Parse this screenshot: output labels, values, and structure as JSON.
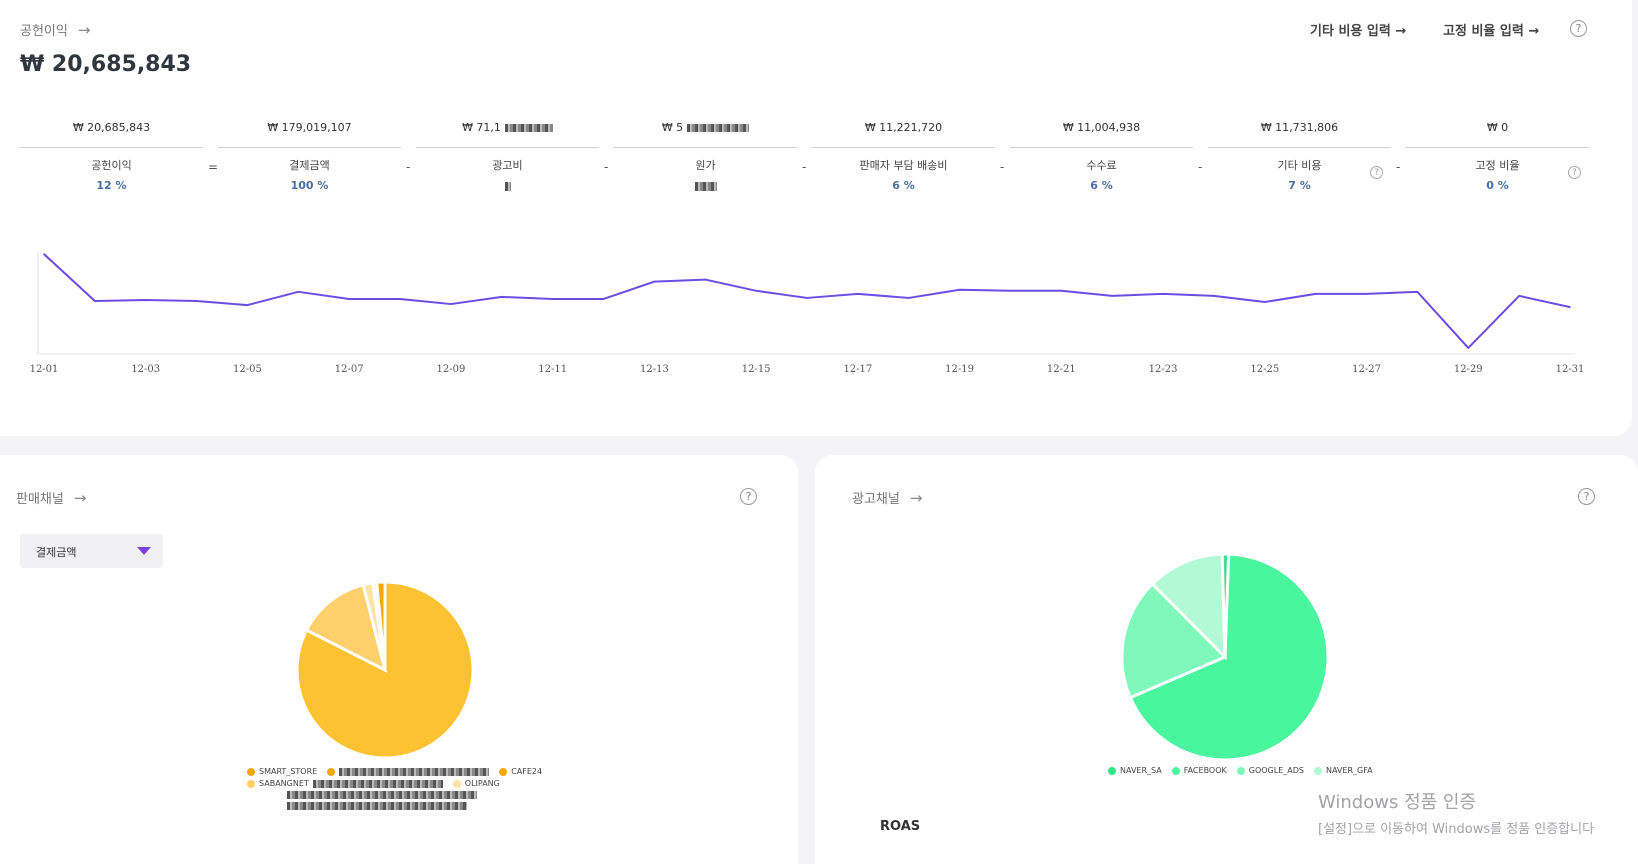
{
  "profit": {
    "title": "공헌이익",
    "value": "₩ 20,685,843",
    "links": [
      "기타 비용 입력 →",
      "고정 비율 입력 →"
    ],
    "metrics": [
      {
        "value": "₩ 20,685,843",
        "label": "공헌이익",
        "pct": "12 %",
        "op": "="
      },
      {
        "value": "₩ 179,019,107",
        "label": "결제금액",
        "pct": "100 %",
        "op": "-"
      },
      {
        "value": "₩ 71,1",
        "label": "광고비",
        "pct": "",
        "op": "-"
      },
      {
        "value": "₩ 5",
        "label": "원가",
        "pct": "",
        "op": "-"
      },
      {
        "value": "₩ 11,221,720",
        "label": "판매자 부담 배송비",
        "pct": "6 %",
        "op": "-"
      },
      {
        "value": "₩ 11,004,938",
        "label": "수수료",
        "pct": "6 %",
        "op": "-"
      },
      {
        "value": "₩ 11,731,806",
        "label": "기타 비용",
        "pct": "7 %",
        "op": "-"
      },
      {
        "value": "₩ 0",
        "label": "고정 비율",
        "pct": "0 %",
        "op": ""
      }
    ]
  },
  "chart_data": [
    {
      "type": "line",
      "x": [
        "12-01",
        "12-02",
        "12-03",
        "12-04",
        "12-05",
        "12-06",
        "12-07",
        "12-08",
        "12-09",
        "12-10",
        "12-11",
        "12-12",
        "12-13",
        "12-14",
        "12-15",
        "12-16",
        "12-17",
        "12-18",
        "12-19",
        "12-20",
        "12-21",
        "12-22",
        "12-23",
        "12-24",
        "12-25",
        "12-26",
        "12-27",
        "12-28",
        "12-29",
        "12-30",
        "12-31"
      ],
      "tick_labels": [
        "12-01",
        "12-03",
        "12-05",
        "12-07",
        "12-09",
        "12-11",
        "12-13",
        "12-15",
        "12-17",
        "12-19",
        "12-21",
        "12-23",
        "12-25",
        "12-27",
        "12-29",
        "12-31"
      ],
      "values": [
        96,
        50,
        51,
        50,
        46,
        59,
        52,
        52,
        47,
        54,
        52,
        52,
        69,
        71,
        60,
        53,
        57,
        53,
        61,
        60,
        60,
        55,
        57,
        55,
        49,
        57,
        57,
        59,
        4,
        55,
        44
      ],
      "color": "#6b4de6",
      "grid": false
    },
    {
      "type": "pie",
      "title": "판매채널",
      "metric": "결제금액",
      "slices": [
        {
          "name": "SMART_STORE",
          "value": 82.5,
          "color": "#fdc232"
        },
        {
          "name": "CAFE24",
          "value": 13.5,
          "color": "#fdd06b"
        },
        {
          "name": "SABANGNET",
          "value": 1.8,
          "color": "#fde3a5"
        },
        {
          "name": "OLIPANG",
          "value": 0.7,
          "color": "#fdebc3"
        },
        {
          "name": "",
          "value": 1.5,
          "color": "#f5a900"
        }
      ],
      "legend_position": "bottom"
    },
    {
      "type": "pie",
      "title": "광고채널",
      "slices": [
        {
          "name": "NAVER_SA",
          "value": 68.0,
          "color": "#49f59d"
        },
        {
          "name": "FACEBOOK",
          "value": 19.0,
          "color": "#7ff9bb"
        },
        {
          "name": "GOOGLE_ADS",
          "value": 12.0,
          "color": "#b1fad5"
        },
        {
          "name": "NAVER_GFA",
          "value": 1.0,
          "color": "#3ae08c"
        }
      ],
      "legend_position": "bottom"
    }
  ],
  "sales": {
    "title": "판매채널",
    "dropdown_value": "결제금액",
    "legend": [
      {
        "name": "SMART_STORE",
        "color": "#f5a900"
      },
      {
        "name": "CAFE24",
        "color": "#f5a900"
      },
      {
        "name": "SABANGNET",
        "color": "#fdd06b"
      },
      {
        "name": "OLIPANG",
        "color": "#fde3a5"
      }
    ]
  },
  "ads": {
    "title": "광고채널",
    "legend": [
      {
        "name": "NAVER_SA",
        "color": "#2ee888"
      },
      {
        "name": "FACEBOOK",
        "color": "#49f59d"
      },
      {
        "name": "GOOGLE_ADS",
        "color": "#7ff9bb"
      },
      {
        "name": "NAVER_GFA",
        "color": "#b1fad5"
      }
    ],
    "roas_label": "ROAS"
  },
  "watermark": {
    "line1": "Windows 정품 인증",
    "line2": "[설정]으로 이동하여 Windows를 정품 인증합니다"
  }
}
